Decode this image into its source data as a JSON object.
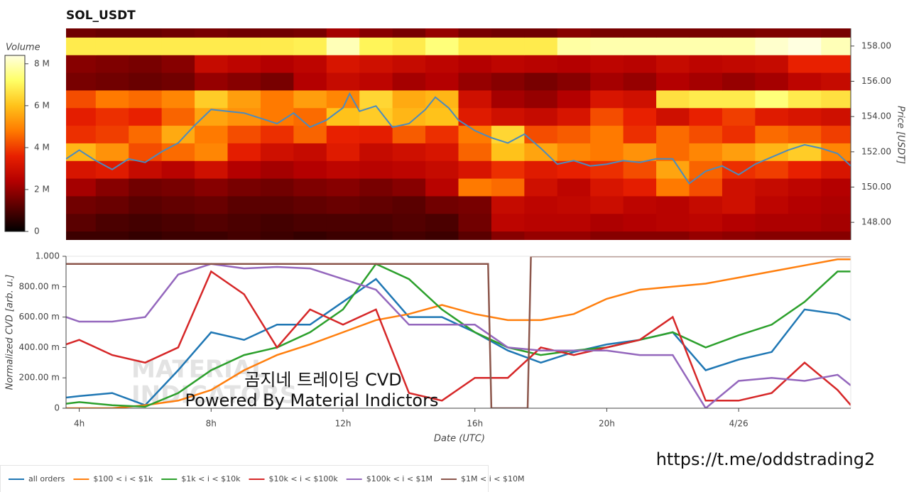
{
  "chart_data": [
    {
      "type": "heatmap",
      "title": "SOL_USDT",
      "x": [
        4,
        5,
        6,
        7,
        8,
        9,
        10,
        11,
        12,
        13,
        14,
        15,
        16,
        17,
        18,
        19,
        20,
        21,
        22,
        23,
        24,
        25,
        26,
        27
      ],
      "y": [
        147,
        148,
        149,
        150,
        151,
        152,
        153,
        154,
        155,
        156,
        157,
        158,
        159
      ],
      "values": [
        [
          0.8,
          0.8,
          0.7,
          0.8,
          0.8,
          0.9,
          0.8,
          0.7,
          0.8,
          0.8,
          0.9,
          0.8,
          1.2,
          1.8,
          2.0,
          2.0,
          1.8,
          1.8,
          1.8,
          2.0,
          1.9,
          1.8,
          1.8,
          1.8
        ],
        [
          1.2,
          1.0,
          0.9,
          1.0,
          1.1,
          1.0,
          0.9,
          1.0,
          1.0,
          1.0,
          1.1,
          1.0,
          1.5,
          2.6,
          2.5,
          2.5,
          2.3,
          2.4,
          2.5,
          2.6,
          2.4,
          2.3,
          2.3,
          2.2
        ],
        [
          1.5,
          1.4,
          1.2,
          1.3,
          1.4,
          1.2,
          1.2,
          1.3,
          1.4,
          1.3,
          1.2,
          1.5,
          1.6,
          2.8,
          2.6,
          2.7,
          2.9,
          2.6,
          2.5,
          2.8,
          3.0,
          2.6,
          2.4,
          2.3
        ],
        [
          2.2,
          1.8,
          1.5,
          1.6,
          1.8,
          1.6,
          1.5,
          1.7,
          1.8,
          1.6,
          1.8,
          2.5,
          4.8,
          4.6,
          3.0,
          2.6,
          3.2,
          3.5,
          4.8,
          4.2,
          3.0,
          2.8,
          2.6,
          2.4
        ],
        [
          3.2,
          3.4,
          2.8,
          2.5,
          3.0,
          2.4,
          2.2,
          2.4,
          2.6,
          2.5,
          2.6,
          2.8,
          3.2,
          3.8,
          3.4,
          3.6,
          3.8,
          4.2,
          5.5,
          4.5,
          3.8,
          4.0,
          3.6,
          3.2
        ],
        [
          5.8,
          5.2,
          4.2,
          4.6,
          5.0,
          3.5,
          3.0,
          2.8,
          3.4,
          2.8,
          3.0,
          3.2,
          4.5,
          6.0,
          5.5,
          5.0,
          4.8,
          5.2,
          4.6,
          5.0,
          5.4,
          5.8,
          6.2,
          5.0
        ],
        [
          3.8,
          4.0,
          4.6,
          5.6,
          4.8,
          4.2,
          3.8,
          4.5,
          3.6,
          3.5,
          4.4,
          3.8,
          4.8,
          6.4,
          4.2,
          4.4,
          4.8,
          3.8,
          4.6,
          4.2,
          3.8,
          4.6,
          4.4,
          4.0
        ],
        [
          3.5,
          3.8,
          3.6,
          4.5,
          5.5,
          5.2,
          4.8,
          4.6,
          6.0,
          6.2,
          5.8,
          6.0,
          3.4,
          3.0,
          2.8,
          3.2,
          4.2,
          3.6,
          3.0,
          3.6,
          4.0,
          3.4,
          3.2,
          3.0
        ],
        [
          4.2,
          4.8,
          4.6,
          5.0,
          6.2,
          5.4,
          4.8,
          5.4,
          5.0,
          6.4,
          5.6,
          5.8,
          3.0,
          2.2,
          2.0,
          2.4,
          3.2,
          3.0,
          6.6,
          6.8,
          6.8,
          7.4,
          6.8,
          6.6
        ],
        [
          1.6,
          1.5,
          1.4,
          1.5,
          2.0,
          1.8,
          1.6,
          2.4,
          2.8,
          2.6,
          2.2,
          2.4,
          2.0,
          1.8,
          1.6,
          1.8,
          2.2,
          2.0,
          2.4,
          2.2,
          2.0,
          2.2,
          2.6,
          2.8
        ],
        [
          1.8,
          1.7,
          1.6,
          1.8,
          2.8,
          2.6,
          2.4,
          2.6,
          3.2,
          3.0,
          2.8,
          2.6,
          2.4,
          2.6,
          2.5,
          2.4,
          2.6,
          2.5,
          2.8,
          2.6,
          2.7,
          2.8,
          3.6,
          3.6
        ],
        [
          6.8,
          6.8,
          6.8,
          6.8,
          6.8,
          6.8,
          6.8,
          6.9,
          8.0,
          7.0,
          6.8,
          7.4,
          6.8,
          6.8,
          6.8,
          7.8,
          7.9,
          7.9,
          7.9,
          7.9,
          7.9,
          8.2,
          8.4,
          8.0
        ],
        [
          1.5,
          1.4,
          1.4,
          1.5,
          1.6,
          1.5,
          1.5,
          1.6,
          2.2,
          1.8,
          1.6,
          2.0,
          1.6,
          1.5,
          1.5,
          1.8,
          1.6,
          1.6,
          1.6,
          1.6,
          1.6,
          1.7,
          1.7,
          1.6
        ]
      ],
      "colorscale": [
        "#000000",
        "#5a0000",
        "#b40000",
        "#e82000",
        "#ff7a00",
        "#ffc21a",
        "#ffff66",
        "#ffffe0"
      ],
      "colorbar": {
        "title": "Volume",
        "lim": [
          0,
          8.4
        ],
        "ticks": [
          0,
          {
            "value": 2,
            "label": "2 M"
          },
          {
            "value": 4,
            "label": "4 M"
          },
          {
            "value": 6,
            "label": "6 M"
          },
          {
            "value": 8,
            "label": "8 M"
          }
        ]
      },
      "xlim": [
        3.6,
        27.4
      ],
      "ylim": [
        147,
        159
      ],
      "yticks": [
        {
          "value": 148,
          "label": "148.00"
        },
        {
          "value": 150,
          "label": "150.00"
        },
        {
          "value": 152,
          "label": "152.00"
        },
        {
          "value": 154,
          "label": "154.00"
        },
        {
          "value": 156,
          "label": "156.00"
        },
        {
          "value": 158,
          "label": "158.00"
        }
      ],
      "ylabel": "Price [USDT]",
      "line": {
        "color": "#4a8bbf",
        "x": [
          3.6,
          4.0,
          4.5,
          5.0,
          5.5,
          6.0,
          6.5,
          7.0,
          7.5,
          8.0,
          8.5,
          9.0,
          9.5,
          10.0,
          10.5,
          11.0,
          11.5,
          12.0,
          12.2,
          12.5,
          13.0,
          13.5,
          14.0,
          14.5,
          14.8,
          15.2,
          15.5,
          16.0,
          16.5,
          17.0,
          17.5,
          18.0,
          18.5,
          19.0,
          19.5,
          20.0,
          20.5,
          21.0,
          21.5,
          22.0,
          22.5,
          23.0,
          23.5,
          24.0,
          24.5,
          25.0,
          25.5,
          26.0,
          26.5,
          27.0,
          27.4
        ],
        "values": [
          151.6,
          152.1,
          151.5,
          151.0,
          151.6,
          151.4,
          152.0,
          152.5,
          153.5,
          154.4,
          154.3,
          154.2,
          153.9,
          153.6,
          154.2,
          153.4,
          153.8,
          154.5,
          155.3,
          154.3,
          154.6,
          153.4,
          153.6,
          154.4,
          155.1,
          154.5,
          153.8,
          153.2,
          152.8,
          152.5,
          153.0,
          152.2,
          151.3,
          151.5,
          151.2,
          151.3,
          151.5,
          151.4,
          151.6,
          151.6,
          150.2,
          150.9,
          151.2,
          150.7,
          151.3,
          151.7,
          152.1,
          152.4,
          152.2,
          151.9,
          151.2
        ]
      }
    },
    {
      "type": "line",
      "x": [
        3.6,
        4,
        5,
        6,
        7,
        8,
        9,
        10,
        11,
        12,
        13,
        14,
        15,
        16,
        17,
        18,
        19,
        20,
        21,
        22,
        23,
        24,
        25,
        26,
        27,
        27.4
      ],
      "series": [
        {
          "name": "all orders",
          "color": "#1f77b4",
          "values": [
            0.07,
            0.08,
            0.1,
            0.02,
            0.25,
            0.5,
            0.45,
            0.55,
            0.55,
            0.7,
            0.85,
            0.6,
            0.6,
            0.5,
            0.38,
            0.3,
            0.37,
            0.42,
            0.45,
            0.5,
            0.25,
            0.32,
            0.37,
            0.65,
            0.62,
            0.58
          ]
        },
        {
          "name": "$100 < i < $1k",
          "color": "#ff7f0e",
          "values": [
            0.0,
            0.0,
            0.0,
            0.02,
            0.05,
            0.12,
            0.25,
            0.35,
            0.42,
            0.5,
            0.58,
            0.62,
            0.68,
            0.62,
            0.58,
            0.58,
            0.62,
            0.72,
            0.78,
            0.8,
            0.82,
            0.86,
            0.9,
            0.94,
            0.98,
            0.98
          ]
        },
        {
          "name": "$1k < i < $10k",
          "color": "#2ca02c",
          "values": [
            0.03,
            0.04,
            0.02,
            0.01,
            0.1,
            0.25,
            0.35,
            0.4,
            0.5,
            0.65,
            0.95,
            0.85,
            0.65,
            0.5,
            0.4,
            0.35,
            0.38,
            0.4,
            0.45,
            0.5,
            0.4,
            0.48,
            0.55,
            0.7,
            0.9,
            0.9
          ]
        },
        {
          "name": "$10k < i < $100k",
          "color": "#d62728",
          "values": [
            0.42,
            0.45,
            0.35,
            0.3,
            0.4,
            0.9,
            0.75,
            0.4,
            0.65,
            0.55,
            0.65,
            0.1,
            0.05,
            0.2,
            0.2,
            0.4,
            0.35,
            0.4,
            0.45,
            0.6,
            0.05,
            0.05,
            0.1,
            0.3,
            0.12,
            0.02
          ]
        },
        {
          "name": "$100k < i < $1M",
          "color": "#9467bd",
          "values": [
            0.6,
            0.57,
            0.57,
            0.6,
            0.88,
            0.95,
            0.92,
            0.93,
            0.92,
            0.85,
            0.78,
            0.55,
            0.55,
            0.55,
            0.4,
            0.38,
            0.38,
            0.38,
            0.35,
            0.35,
            0.0,
            0.18,
            0.2,
            0.18,
            0.22,
            0.15
          ]
        },
        {
          "name": "$1M < i < $10M",
          "color": "#8c564b",
          "x": [
            3.6,
            16.4,
            16.5,
            17.6,
            17.7,
            27.4
          ],
          "values": [
            0.95,
            0.95,
            0,
            0,
            1,
            1
          ]
        }
      ],
      "xlim": [
        3.6,
        27.4
      ],
      "ylim": [
        0,
        1
      ],
      "xticks": [
        {
          "value": 4,
          "label": "4h"
        },
        {
          "value": 8,
          "label": "8h"
        },
        {
          "value": 12,
          "label": "12h"
        },
        {
          "value": 16,
          "label": "16h"
        },
        {
          "value": 20,
          "label": "20h"
        },
        {
          "value": 24,
          "label": "4/26"
        }
      ],
      "yticks": [
        0,
        {
          "value": 0.2,
          "label": "200.00 m"
        },
        {
          "value": 0.4,
          "label": "400.00 m"
        },
        {
          "value": 0.6,
          "label": "600.00 m"
        },
        {
          "value": 0.8,
          "label": "800.00 m"
        },
        {
          "value": 1,
          "label": "1.000"
        }
      ],
      "xlabel": "Date (UTC)",
      "ylabel": "Normalized CVD [arb. u.]"
    }
  ],
  "overlay": {
    "watermark": [
      "MATERIAL",
      "INDICATORS"
    ],
    "title": "곰지네 트레이딩 CVD",
    "credit": "Powered By Material Indictors",
    "url": "https://t.me/oddstrading2"
  }
}
